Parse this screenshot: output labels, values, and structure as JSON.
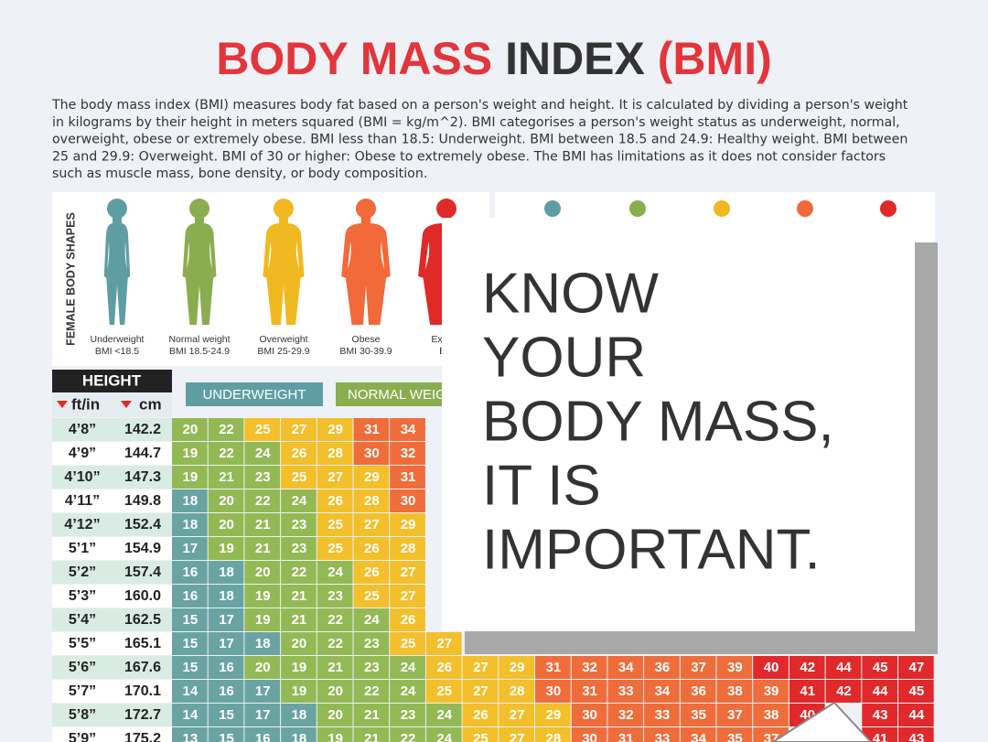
{
  "header": {
    "title_parts": [
      "BODY MASS",
      "INDEX",
      "(BMI)"
    ],
    "description_lines": [
      "The body mass index (BMI) measures body fat based on a person's weight and height. It is calculated by dividing a person's weight",
      "in kilograms by their height in meters squared (BMI = kg/m^2). BMI categorises a person's weight status as underweight, normal,",
      "overweight, obese or extremely obese. BMI less than 18.5: Underweight. BMI between 18.5 and 24.9: Healthy weight. BMI between",
      "25 and 29.9: Overweight. BMI of 30 or higher: Obese to extremely obese. The BMI has limitations as it does not consider factors",
      "such as muscle mass, bone density, or body composition."
    ]
  },
  "body_shapes": {
    "label": "FEMALE BODY SHAPES",
    "shapes": [
      {
        "name": "Underweight",
        "range": "BMI <18.5",
        "color": "#5e9ea3"
      },
      {
        "name": "Normal weight",
        "range": "BMI 18.5-24.9",
        "color": "#8aad4f"
      },
      {
        "name": "Overweight",
        "range": "BMI 25-29.9",
        "color": "#f1b921"
      },
      {
        "name": "Obese",
        "range": "BMI 30-39.9",
        "color": "#f2693a"
      },
      {
        "name": "Extrem",
        "range": "BM",
        "color": "#e02a27"
      }
    ]
  },
  "table": {
    "height_label": "HEIGHT",
    "unit_ft": "ft/in",
    "unit_cm": "cm",
    "category_labels": [
      "UNDERWEIGHT",
      "NORMAL WEIG"
    ],
    "rows": [
      {
        "ft": "4’8”",
        "cm": "142.2",
        "values": [
          20,
          22,
          25,
          27,
          29,
          31,
          34
        ]
      },
      {
        "ft": "4’9”",
        "cm": "144.7",
        "values": [
          19,
          22,
          24,
          26,
          28,
          30,
          32
        ]
      },
      {
        "ft": "4’10”",
        "cm": "147.3",
        "values": [
          19,
          21,
          23,
          25,
          27,
          29,
          31
        ]
      },
      {
        "ft": "4’11”",
        "cm": "149.8",
        "values": [
          18,
          20,
          22,
          24,
          26,
          28,
          30
        ]
      },
      {
        "ft": "4’12”",
        "cm": "152.4",
        "values": [
          18,
          20,
          21,
          23,
          25,
          27,
          29
        ]
      },
      {
        "ft": "5’1”",
        "cm": "154.9",
        "values": [
          17,
          19,
          21,
          23,
          25,
          26,
          28
        ]
      },
      {
        "ft": "5’2”",
        "cm": "157.4",
        "values": [
          16,
          18,
          20,
          22,
          24,
          26,
          27
        ]
      },
      {
        "ft": "5’3”",
        "cm": "160.0",
        "values": [
          16,
          18,
          19,
          21,
          23,
          25,
          27
        ]
      },
      {
        "ft": "5’4”",
        "cm": "162.5",
        "values": [
          15,
          17,
          19,
          21,
          22,
          24,
          26
        ]
      },
      {
        "ft": "5’5”",
        "cm": "165.1",
        "values": [
          15,
          17,
          18,
          20,
          22,
          23,
          25,
          27
        ]
      },
      {
        "ft": "5’6”",
        "cm": "167.6",
        "values": [
          15,
          16,
          20,
          19,
          21,
          23,
          24,
          26,
          27,
          29,
          31,
          32,
          34,
          36,
          37,
          39,
          40,
          42,
          44,
          45,
          47
        ]
      },
      {
        "ft": "5’7”",
        "cm": "170.1",
        "values": [
          14,
          16,
          17,
          19,
          20,
          22,
          24,
          25,
          27,
          28,
          30,
          31,
          33,
          34,
          36,
          38,
          39,
          41,
          42,
          44,
          45
        ]
      },
      {
        "ft": "5’8”",
        "cm": "172.7",
        "values": [
          14,
          15,
          17,
          18,
          20,
          21,
          23,
          24,
          26,
          27,
          29,
          30,
          32,
          33,
          35,
          37,
          38,
          40,
          null,
          43,
          44
        ]
      },
      {
        "ft": "5’9”",
        "cm": "175.2",
        "values": [
          13,
          15,
          16,
          18,
          19,
          21,
          22,
          24,
          25,
          27,
          28,
          30,
          31,
          33,
          34,
          35,
          37,
          null,
          null,
          41,
          43
        ]
      }
    ]
  },
  "overlay": {
    "lines": [
      "KNOW",
      "YOUR",
      "BODY MASS,",
      "IT IS",
      "IMPORTANT."
    ]
  }
}
